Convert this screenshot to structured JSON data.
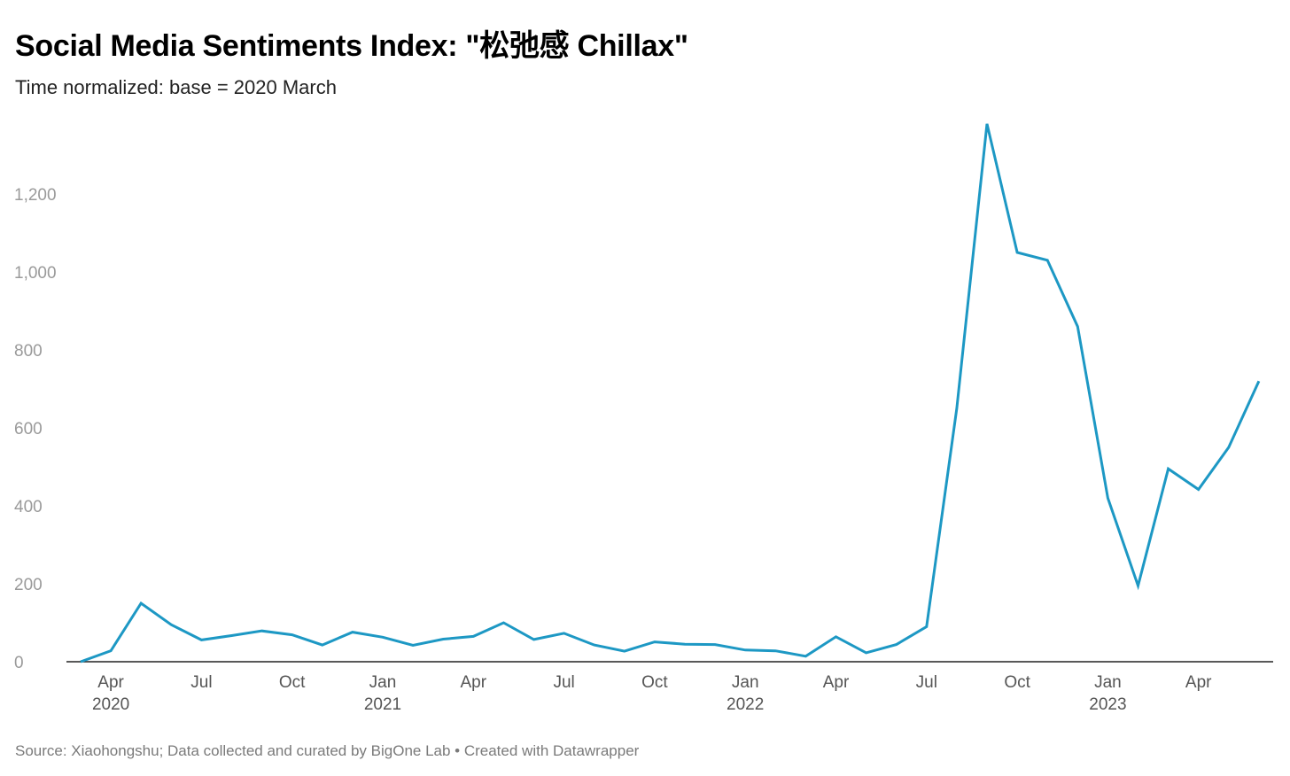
{
  "chart_data": {
    "type": "line",
    "title": "Social Media Sentiments Index: \"松弛感 Chillax\"",
    "subtitle": "Time normalized: base = 2020 March",
    "xlabel": "",
    "ylabel": "",
    "ylim": [
      0,
      1400
    ],
    "yticks": [
      0,
      200,
      400,
      600,
      800,
      1000,
      1200
    ],
    "ytick_labels": [
      "0",
      "200",
      "400",
      "600",
      "800",
      "1,000",
      "1,200"
    ],
    "xticks": [
      {
        "month": "2020-04",
        "label": "Apr",
        "year": "2020"
      },
      {
        "month": "2020-07",
        "label": "Jul",
        "year": ""
      },
      {
        "month": "2020-10",
        "label": "Oct",
        "year": ""
      },
      {
        "month": "2021-01",
        "label": "Jan",
        "year": "2021"
      },
      {
        "month": "2021-04",
        "label": "Apr",
        "year": ""
      },
      {
        "month": "2021-07",
        "label": "Jul",
        "year": ""
      },
      {
        "month": "2021-10",
        "label": "Oct",
        "year": ""
      },
      {
        "month": "2022-01",
        "label": "Jan",
        "year": "2022"
      },
      {
        "month": "2022-04",
        "label": "Apr",
        "year": ""
      },
      {
        "month": "2022-07",
        "label": "Jul",
        "year": ""
      },
      {
        "month": "2022-10",
        "label": "Oct",
        "year": ""
      },
      {
        "month": "2023-01",
        "label": "Jan",
        "year": "2023"
      },
      {
        "month": "2023-04",
        "label": "Apr",
        "year": ""
      }
    ],
    "grid": false,
    "series": [
      {
        "color": "#1d98c4",
        "x": [
          "2020-03",
          "2020-04",
          "2020-05",
          "2020-06",
          "2020-07",
          "2020-08",
          "2020-09",
          "2020-10",
          "2020-11",
          "2020-12",
          "2021-01",
          "2021-02",
          "2021-03",
          "2021-04",
          "2021-05",
          "2021-06",
          "2021-07",
          "2021-08",
          "2021-09",
          "2021-10",
          "2021-11",
          "2021-12",
          "2022-01",
          "2022-02",
          "2022-03",
          "2022-04",
          "2022-05",
          "2022-06",
          "2022-07",
          "2022-08",
          "2022-09",
          "2022-10",
          "2022-11",
          "2022-12",
          "2023-01",
          "2023-02",
          "2023-03",
          "2023-04",
          "2023-05",
          "2023-06"
        ],
        "values": [
          0,
          28,
          150,
          95,
          56,
          67,
          79,
          69,
          43,
          76,
          63,
          42,
          58,
          65,
          100,
          57,
          73,
          43,
          27,
          51,
          45,
          44,
          30,
          28,
          14,
          64,
          23,
          44,
          90,
          650,
          1380,
          1050,
          1030,
          860,
          420,
          195,
          495,
          442,
          550,
          720
        ]
      }
    ]
  },
  "footer": "Source: Xiaohongshu; Data collected and curated by BigOne Lab • Created with Datawrapper"
}
